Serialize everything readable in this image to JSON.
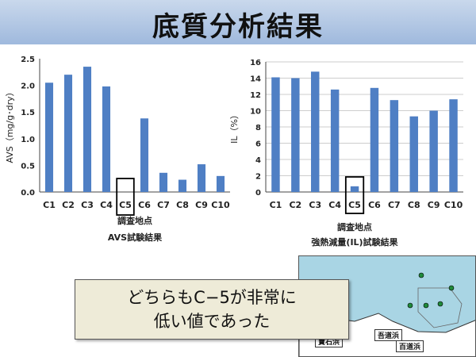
{
  "slide": {
    "title": "底質分析結果",
    "callout_line1": "どちらもC−5が非常に",
    "callout_line2": "低い値であった"
  },
  "map": {
    "labels": [
      "寶石浜",
      "吾道浜",
      "百道浜"
    ]
  },
  "colors": {
    "bar": "#4f7fc4",
    "highlight_box": "#000000",
    "title_band": "#a9c0e0"
  },
  "chart_data": [
    {
      "type": "bar",
      "categories": [
        "C1",
        "C2",
        "C3",
        "C4",
        "C5",
        "C6",
        "C7",
        "C8",
        "C9",
        "C10"
      ],
      "values": [
        2.05,
        2.2,
        2.35,
        1.98,
        0.0,
        1.38,
        0.36,
        0.23,
        0.52,
        0.3
      ],
      "ylabel": "AVS（mg/g･dry）",
      "xlabel": "調査地点",
      "caption": "AVS試験結果",
      "ylim": [
        0,
        2.5
      ],
      "yticks": [
        "0.0",
        "0.5",
        "1.0",
        "1.5",
        "2.0",
        "2.5"
      ],
      "highlight": "C5",
      "grid": false
    },
    {
      "type": "bar",
      "categories": [
        "C1",
        "C2",
        "C3",
        "C4",
        "C5",
        "C6",
        "C7",
        "C8",
        "C9",
        "C10"
      ],
      "values": [
        14.1,
        14.0,
        14.8,
        12.6,
        0.7,
        12.8,
        11.3,
        9.3,
        10.0,
        11.4
      ],
      "ylabel": "IL（%）",
      "xlabel": "調査地点",
      "caption": "強熱減量(IL)試験結果",
      "ylim": [
        0,
        16
      ],
      "yticks": [
        "0",
        "2",
        "4",
        "6",
        "8",
        "10",
        "12",
        "14",
        "16"
      ],
      "highlight": "C5",
      "grid": true
    }
  ]
}
